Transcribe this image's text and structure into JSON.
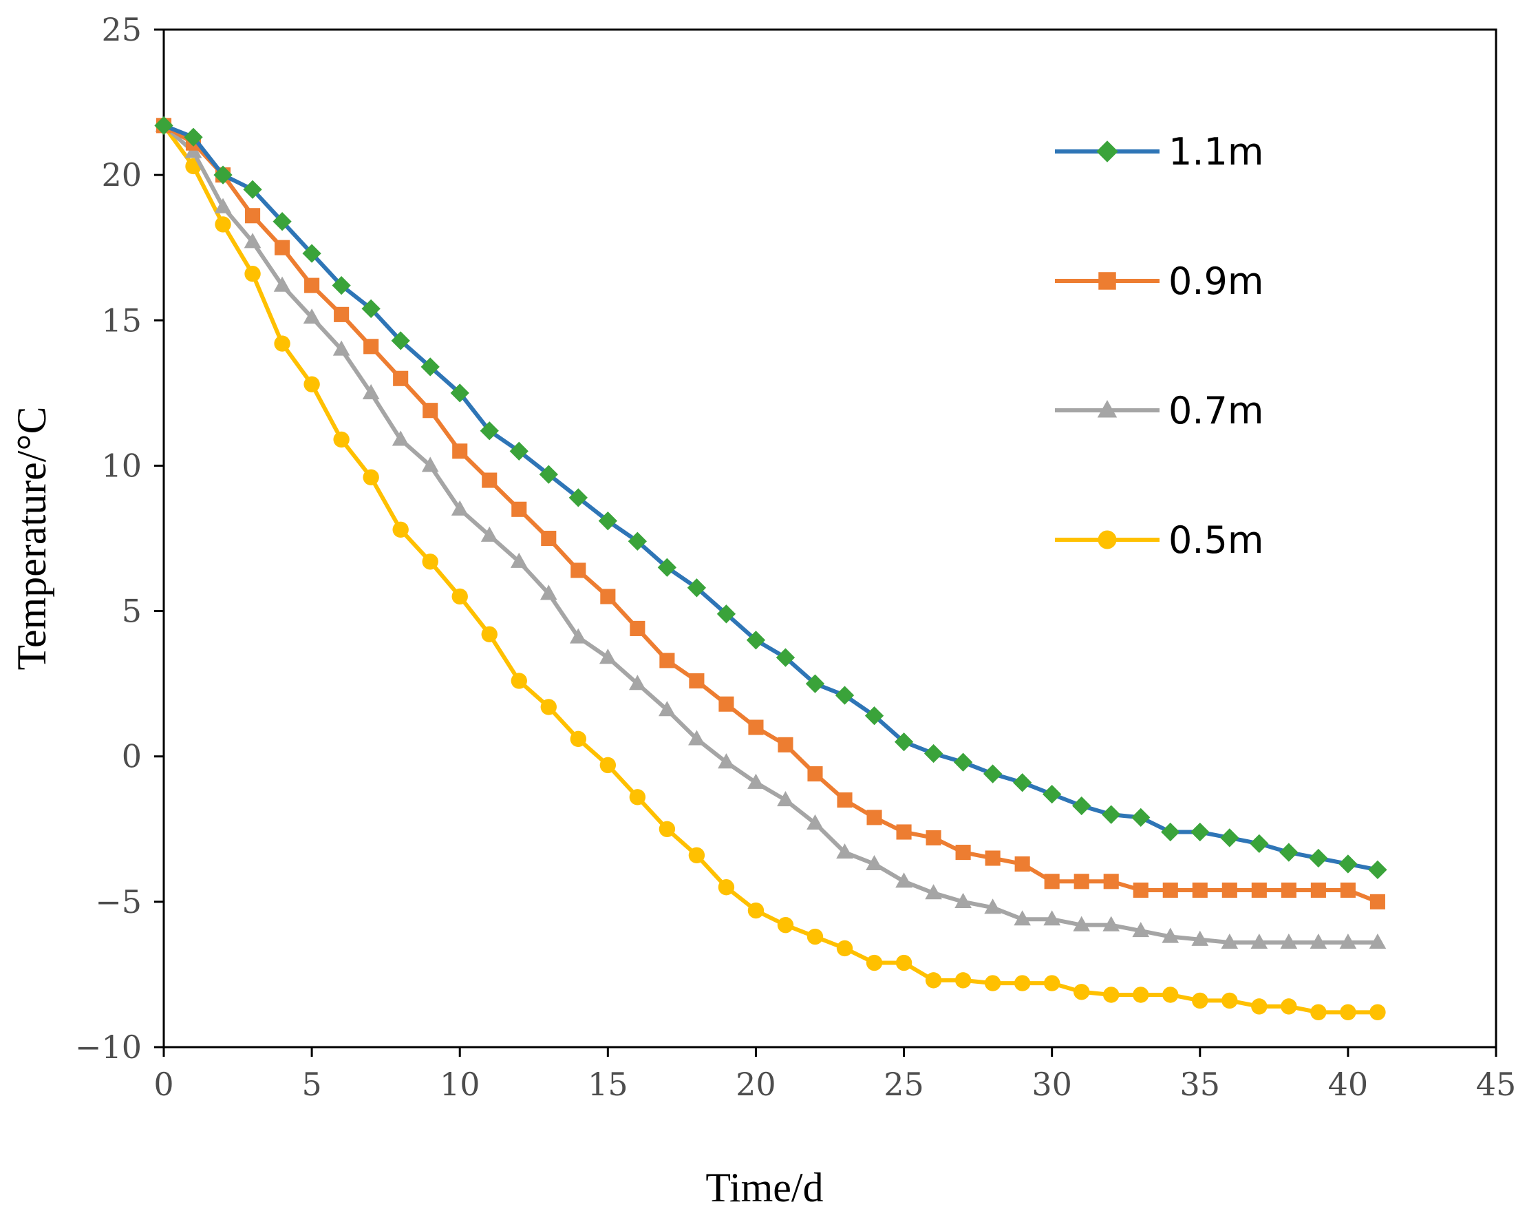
{
  "chart_data": {
    "type": "line",
    "xlabel": "Time/d",
    "ylabel": "Temperature/°C",
    "xlim": [
      0,
      45
    ],
    "ylim": [
      -10,
      25
    ],
    "xticks": [
      0,
      5,
      10,
      15,
      20,
      25,
      30,
      35,
      40,
      45
    ],
    "yticks": [
      -10,
      -5,
      0,
      5,
      10,
      15,
      20,
      25
    ],
    "ytick_labels": [
      "−10",
      "−5",
      "0",
      "5",
      "10",
      "15",
      "20",
      "25"
    ],
    "legend_position": "top-right",
    "grid": false,
    "x": [
      0,
      1,
      2,
      3,
      4,
      5,
      6,
      7,
      8,
      9,
      10,
      11,
      12,
      13,
      14,
      15,
      16,
      17,
      18,
      19,
      20,
      21,
      22,
      23,
      24,
      25,
      26,
      27,
      28,
      29,
      30,
      31,
      32,
      33,
      34,
      35,
      36,
      37,
      38,
      39,
      40,
      41
    ],
    "series": [
      {
        "name": "1.1m",
        "color": "#2e75b6",
        "marker": "diamond",
        "marker_color": "#3aa33a",
        "values": [
          21.7,
          21.3,
          20.0,
          19.5,
          18.4,
          17.3,
          16.2,
          15.4,
          14.3,
          13.4,
          12.5,
          11.2,
          10.5,
          9.7,
          8.9,
          8.1,
          7.4,
          6.5,
          5.8,
          4.9,
          4.0,
          3.4,
          2.5,
          2.1,
          1.4,
          0.5,
          0.1,
          -0.2,
          -0.6,
          -0.9,
          -1.3,
          -1.7,
          -2.0,
          -2.1,
          -2.6,
          -2.6,
          -2.8,
          -3.0,
          -3.3,
          -3.5,
          -3.7,
          -3.9
        ]
      },
      {
        "name": "0.9m",
        "color": "#ed7d31",
        "marker": "square",
        "marker_color": "#ed7d31",
        "values": [
          21.7,
          21.1,
          20.0,
          18.6,
          17.5,
          16.2,
          15.2,
          14.1,
          13.0,
          11.9,
          10.5,
          9.5,
          8.5,
          7.5,
          6.4,
          5.5,
          4.4,
          3.3,
          2.6,
          1.8,
          1.0,
          0.4,
          -0.6,
          -1.5,
          -2.1,
          -2.6,
          -2.8,
          -3.3,
          -3.5,
          -3.7,
          -4.3,
          -4.3,
          -4.3,
          -4.6,
          -4.6,
          -4.6,
          -4.6,
          -4.6,
          -4.6,
          -4.6,
          -4.6,
          -5.0
        ]
      },
      {
        "name": "0.7m",
        "color": "#a5a5a5",
        "marker": "triangle",
        "marker_color": "#a5a5a5",
        "values": [
          21.7,
          20.8,
          18.9,
          17.7,
          16.2,
          15.1,
          14.0,
          12.5,
          10.9,
          10.0,
          8.5,
          7.6,
          6.7,
          5.6,
          4.1,
          3.4,
          2.5,
          1.6,
          0.6,
          -0.2,
          -0.9,
          -1.5,
          -2.3,
          -3.3,
          -3.7,
          -4.3,
          -4.7,
          -5.0,
          -5.2,
          -5.6,
          -5.6,
          -5.8,
          -5.8,
          -6.0,
          -6.2,
          -6.3,
          -6.4,
          -6.4,
          -6.4,
          -6.4,
          -6.4,
          -6.4
        ]
      },
      {
        "name": "0.5m",
        "color": "#ffc000",
        "marker": "circle",
        "marker_color": "#ffc000",
        "values": [
          21.7,
          20.3,
          18.3,
          16.6,
          14.2,
          12.8,
          10.9,
          9.6,
          7.8,
          6.7,
          5.5,
          4.2,
          2.6,
          1.7,
          0.6,
          -0.3,
          -1.4,
          -2.5,
          -3.4,
          -4.5,
          -5.3,
          -5.8,
          -6.2,
          -6.6,
          -7.1,
          -7.1,
          -7.7,
          -7.7,
          -7.8,
          -7.8,
          -7.8,
          -8.1,
          -8.2,
          -8.2,
          -8.2,
          -8.4,
          -8.4,
          -8.6,
          -8.6,
          -8.8,
          -8.8,
          -8.8
        ]
      }
    ]
  }
}
